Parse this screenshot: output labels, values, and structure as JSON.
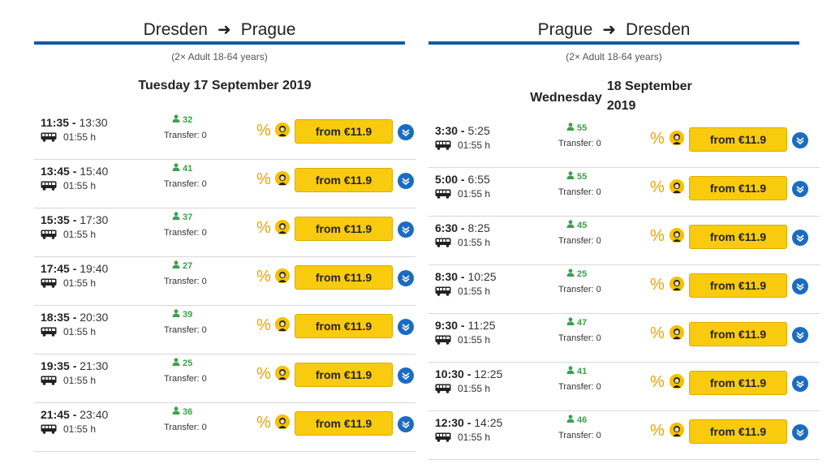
{
  "outbound": {
    "from_city": "Dresden",
    "to_city": "Prague",
    "passengers": "(2× Adult 18-64 years)",
    "date": "Tuesday 17 September 2019",
    "trips": [
      {
        "dep": "11:35",
        "arr": "13:30",
        "duration": "01:55 h",
        "seats": "32",
        "transfer": "Transfer: 0",
        "price": "from €11.9"
      },
      {
        "dep": "13:45",
        "arr": "15:40",
        "duration": "01:55 h",
        "seats": "41",
        "transfer": "Transfer: 0",
        "price": "from €11.9"
      },
      {
        "dep": "15:35",
        "arr": "17:30",
        "duration": "01:55 h",
        "seats": "37",
        "transfer": "Transfer: 0",
        "price": "from €11.9"
      },
      {
        "dep": "17:45",
        "arr": "19:40",
        "duration": "01:55 h",
        "seats": "27",
        "transfer": "Transfer: 0",
        "price": "from €11.9"
      },
      {
        "dep": "18:35",
        "arr": "20:30",
        "duration": "01:55 h",
        "seats": "39",
        "transfer": "Transfer: 0",
        "price": "from €11.9"
      },
      {
        "dep": "19:35",
        "arr": "21:30",
        "duration": "01:55 h",
        "seats": "25",
        "transfer": "Transfer: 0",
        "price": "from €11.9"
      },
      {
        "dep": "21:45",
        "arr": "23:40",
        "duration": "01:55 h",
        "seats": "36",
        "transfer": "Transfer: 0",
        "price": "from €11.9"
      }
    ]
  },
  "inbound": {
    "from_city": "Prague",
    "to_city": "Dresden",
    "passengers": "(2× Adult 18-64 years)",
    "date_weekday": "Wednesday",
    "date_rest": "18 September 2019",
    "trips": [
      {
        "dep": "3:30",
        "arr": "5:25",
        "duration": "01:55 h",
        "seats": "55",
        "transfer": "Transfer: 0",
        "price": "from €11.9"
      },
      {
        "dep": "5:00",
        "arr": "6:55",
        "duration": "01:55 h",
        "seats": "55",
        "transfer": "Transfer: 0",
        "price": "from €11.9"
      },
      {
        "dep": "6:30",
        "arr": "8:25",
        "duration": "01:55 h",
        "seats": "45",
        "transfer": "Transfer: 0",
        "price": "from €11.9"
      },
      {
        "dep": "8:30",
        "arr": "10:25",
        "duration": "01:55 h",
        "seats": "25",
        "transfer": "Transfer: 0",
        "price": "from €11.9"
      },
      {
        "dep": "9:30",
        "arr": "11:25",
        "duration": "01:55 h",
        "seats": "47",
        "transfer": "Transfer: 0",
        "price": "from €11.9"
      },
      {
        "dep": "10:30",
        "arr": "12:25",
        "duration": "01:55 h",
        "seats": "41",
        "transfer": "Transfer: 0",
        "price": "from €11.9"
      },
      {
        "dep": "12:30",
        "arr": "14:25",
        "duration": "01:55 h",
        "seats": "46",
        "transfer": "Transfer: 0",
        "price": "from €11.9"
      }
    ]
  },
  "icons": {
    "route_arrow": "arrow-right-icon",
    "bus": "bus-icon",
    "seats": "person-icon",
    "discount": "percent-icon",
    "driver": "driver-avatar-icon",
    "expand": "chevron-down-icon"
  },
  "colors": {
    "accent_blue": "#0e5aa7",
    "price_yellow": "#f9cb0f",
    "seats_green": "#3aa14b",
    "discount_orange": "#f2a100"
  }
}
